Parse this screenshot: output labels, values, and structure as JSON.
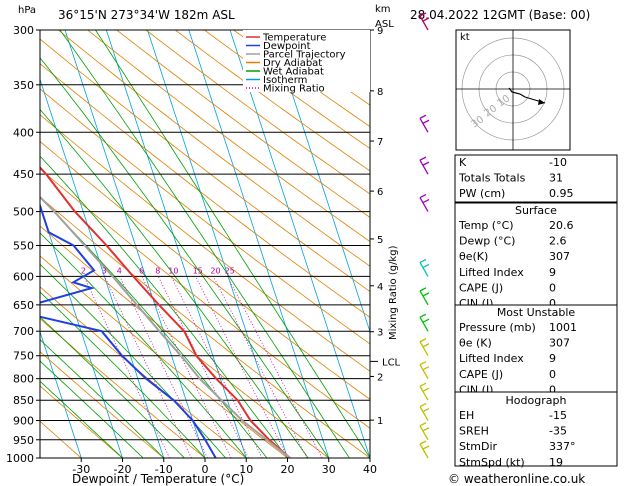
{
  "header": {
    "pressure_unit": "hPa",
    "location": "36°15'N 273°34'W 182m ASL",
    "km_label": "km",
    "asl_label": "ASL",
    "datetime": "28.04.2022 12GMT (Base: 00)"
  },
  "legend": [
    {
      "label": "Temperature",
      "color": "#e03030",
      "style": "solid"
    },
    {
      "label": "Dewpoint",
      "color": "#2040e0",
      "style": "solid"
    },
    {
      "label": "Parcel Trajectory",
      "color": "#a0a0a0",
      "style": "solid"
    },
    {
      "label": "Dry Adiabat",
      "color": "#e08000",
      "style": "solid"
    },
    {
      "label": "Wet Adiabat",
      "color": "#00a000",
      "style": "solid"
    },
    {
      "label": "Isotherm",
      "color": "#00a0e0",
      "style": "solid"
    },
    {
      "label": "Mixing Ratio",
      "color": "#c000a0",
      "style": "dotted"
    }
  ],
  "chart_data": {
    "type": "line",
    "title": "36°15'N 273°34'W 182m ASL",
    "xlabel": "Dewpoint / Temperature (°C)",
    "ylabel": "hPa",
    "right_axis_label": "Mixing Ratio (g/kg)",
    "xlim": [
      -40,
      40
    ],
    "xticks": [
      "-30",
      "-20",
      "-10",
      "0",
      "10",
      "20",
      "30",
      "40"
    ],
    "pressure_levels": [
      "300",
      "350",
      "400",
      "450",
      "500",
      "550",
      "600",
      "650",
      "700",
      "750",
      "800",
      "850",
      "900",
      "950",
      "1000"
    ],
    "km_ticks": [
      "9",
      "8",
      "7",
      "6",
      "5",
      "4",
      "3",
      "2",
      "1"
    ],
    "lcl_label": "LCL",
    "lcl_pressure": 762,
    "mixing_ratio_labels": [
      "2",
      "3",
      "4",
      "6",
      "8",
      "10",
      "15",
      "20",
      "25"
    ],
    "series": [
      {
        "name": "Temperature",
        "points": [
          [
            1000,
            20.6
          ],
          [
            950,
            17
          ],
          [
            900,
            14
          ],
          [
            850,
            12.5
          ],
          [
            800,
            9
          ],
          [
            750,
            6
          ],
          [
            700,
            5
          ],
          [
            650,
            1
          ],
          [
            600,
            -3
          ],
          [
            550,
            -7
          ],
          [
            500,
            -12
          ],
          [
            450,
            -16
          ],
          [
            400,
            -22
          ],
          [
            350,
            -30
          ],
          [
            300,
            -39
          ]
        ]
      },
      {
        "name": "Dewpoint",
        "points": [
          [
            1000,
            2.6
          ],
          [
            950,
            1.5
          ],
          [
            900,
            0
          ],
          [
            850,
            -3
          ],
          [
            800,
            -8
          ],
          [
            750,
            -12
          ],
          [
            700,
            -15
          ],
          [
            660,
            -35
          ],
          [
            620,
            -14
          ],
          [
            610,
            -18
          ],
          [
            590,
            -12
          ],
          [
            550,
            -15
          ],
          [
            530,
            -20
          ],
          [
            510,
            -20
          ],
          [
            490,
            -20
          ],
          [
            470,
            -25
          ],
          [
            400,
            -42
          ],
          [
            350,
            -48
          ],
          [
            300,
            -55
          ]
        ]
      },
      {
        "name": "Parcel Trajectory",
        "points": [
          [
            1000,
            20.6
          ],
          [
            900,
            12
          ],
          [
            800,
            5
          ],
          [
            762,
            3
          ],
          [
            700,
            -1
          ],
          [
            600,
            -8
          ],
          [
            500,
            -17
          ],
          [
            450,
            -23
          ],
          [
            400,
            -30
          ],
          [
            350,
            -38
          ],
          [
            300,
            -47
          ]
        ]
      }
    ]
  },
  "stats": {
    "rows1": [
      {
        "label": "K",
        "value": "-10"
      },
      {
        "label": "Totals Totals",
        "value": "31"
      },
      {
        "label": "PW (cm)",
        "value": "0.95"
      }
    ],
    "surface_title": "Surface",
    "surface": [
      {
        "label": "Temp (°C)",
        "value": "20.6"
      },
      {
        "label": "Dewp (°C)",
        "value": "2.6"
      },
      {
        "label": "θe(K)",
        "value": "307"
      },
      {
        "label": "Lifted Index",
        "value": "9"
      },
      {
        "label": "CAPE (J)",
        "value": "0"
      },
      {
        "label": "CIN (J)",
        "value": "0"
      }
    ],
    "unstable_title": "Most Unstable",
    "unstable": [
      {
        "label": "Pressure (mb)",
        "value": "1001"
      },
      {
        "label": "θe (K)",
        "value": "307"
      },
      {
        "label": "Lifted Index",
        "value": "9"
      },
      {
        "label": "CAPE (J)",
        "value": "0"
      },
      {
        "label": "CIN (J)",
        "value": "0"
      }
    ],
    "hodo_title": "Hodograph",
    "hodo": [
      {
        "label": "EH",
        "value": "-15"
      },
      {
        "label": "SREH",
        "value": "-35"
      },
      {
        "label": "StmDir",
        "value": "337°"
      },
      {
        "label": "StmSpd (kt)",
        "value": "19"
      }
    ]
  },
  "hodograph": {
    "unit_label": "kt",
    "ring_labels": [
      "10",
      "20",
      "30"
    ]
  },
  "footer": {
    "copyright": "© weatheronline.co.uk"
  }
}
